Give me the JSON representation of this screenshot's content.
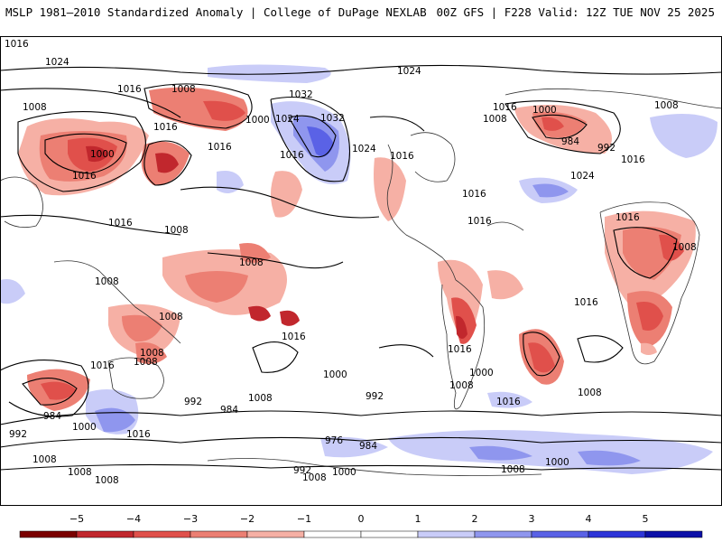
{
  "header": {
    "title": "MSLP 1981–2010 Standardized Anomaly | College of DuPage NEXLAB",
    "run_info": "00Z GFS | F228 Valid: 12Z TUE NOV 25 2025"
  },
  "isobar_labels": [
    "1024",
    "1024",
    "1016",
    "1008",
    "1008",
    "1032",
    "1032",
    "1000",
    "1024",
    "1016",
    "1000",
    "1016",
    "1016",
    "1024",
    "1016",
    "984",
    "992",
    "1016",
    "1000",
    "1008",
    "1008",
    "1016",
    "1024",
    "1016",
    "1016",
    "1016",
    "1016",
    "1016",
    "1016",
    "1008",
    "1008",
    "1008",
    "1008",
    "1008",
    "1008",
    "1008",
    "1016",
    "1016",
    "1016",
    "1000",
    "1016",
    "1016",
    "1008",
    "1008",
    "1008",
    "1000",
    "992",
    "984",
    "992",
    "1000",
    "984",
    "992",
    "976",
    "984",
    "992",
    "1000",
    "1008",
    "1008",
    "1008",
    "1008",
    "1000",
    "1008",
    "1016"
  ],
  "colorbar": {
    "ticks": [
      "−5",
      "−4",
      "−3",
      "−2",
      "−1",
      "0",
      "1",
      "2",
      "3",
      "4",
      "5"
    ],
    "colors": [
      "#7a0000",
      "#c1272d",
      "#e0504b",
      "#ec7f73",
      "#f6b0a5",
      "#ffffff",
      "#ffffff",
      "#c9ccf8",
      "#8f96ee",
      "#5a62e6",
      "#2d35d8",
      "#0c10a8"
    ]
  },
  "anomaly_colors": {
    "neg_light": "#f6b0a5",
    "neg_mid": "#ec7f73",
    "neg_strong": "#e0504b",
    "neg_dark": "#c1272d",
    "pos_light": "#c9ccf8",
    "pos_mid": "#8f96ee",
    "pos_strong": "#5a62e6"
  }
}
